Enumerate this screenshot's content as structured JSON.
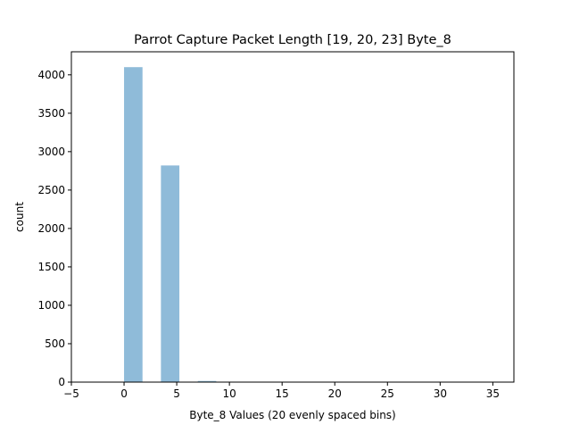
{
  "chart_data": {
    "type": "bar",
    "title": "Parrot Capture Packet Length [19, 20, 23] Byte_8",
    "xlabel": "Byte_8 Values (20 evenly spaced bins)",
    "ylabel": "count",
    "xlim": [
      -5,
      37
    ],
    "ylim": [
      0,
      4300
    ],
    "xticks": [
      -5,
      0,
      5,
      10,
      15,
      20,
      25,
      30,
      35
    ],
    "xtick_labels": [
      "−5",
      "0",
      "5",
      "10",
      "15",
      "20",
      "25",
      "30",
      "35"
    ],
    "yticks": [
      0,
      500,
      1000,
      1500,
      2000,
      2500,
      3000,
      3500,
      4000
    ],
    "ytick_labels": [
      "0",
      "500",
      "1000",
      "1500",
      "2000",
      "2500",
      "3000",
      "3500",
      "4000"
    ],
    "grid": false,
    "bar_color": "#1f77b4",
    "bar_opacity": 0.5,
    "bars": [
      {
        "x0": 0,
        "x1": 1.75,
        "value": 4100
      },
      {
        "x0": 1.75,
        "x1": 3.5,
        "value": 0
      },
      {
        "x0": 3.5,
        "x1": 5.25,
        "value": 2820
      },
      {
        "x0": 5.25,
        "x1": 7.0,
        "value": 0
      },
      {
        "x0": 7.0,
        "x1": 8.75,
        "value": 15
      },
      {
        "x0": 8.75,
        "x1": 10.5,
        "value": 0
      },
      {
        "x0": 10.5,
        "x1": 12.25,
        "value": 0
      },
      {
        "x0": 12.25,
        "x1": 14.0,
        "value": 0
      },
      {
        "x0": 14.0,
        "x1": 15.75,
        "value": 0
      },
      {
        "x0": 15.75,
        "x1": 17.5,
        "value": 0
      },
      {
        "x0": 17.5,
        "x1": 19.25,
        "value": 0
      },
      {
        "x0": 19.25,
        "x1": 21.0,
        "value": 0
      },
      {
        "x0": 21.0,
        "x1": 22.75,
        "value": 0
      },
      {
        "x0": 22.75,
        "x1": 24.5,
        "value": 0
      },
      {
        "x0": 24.5,
        "x1": 26.25,
        "value": 0
      },
      {
        "x0": 26.25,
        "x1": 28.0,
        "value": 0
      },
      {
        "x0": 28.0,
        "x1": 29.75,
        "value": 0
      },
      {
        "x0": 29.75,
        "x1": 31.5,
        "value": 0
      },
      {
        "x0": 31.5,
        "x1": 33.25,
        "value": 0
      },
      {
        "x0": 33.25,
        "x1": 35.0,
        "value": 1
      }
    ]
  }
}
